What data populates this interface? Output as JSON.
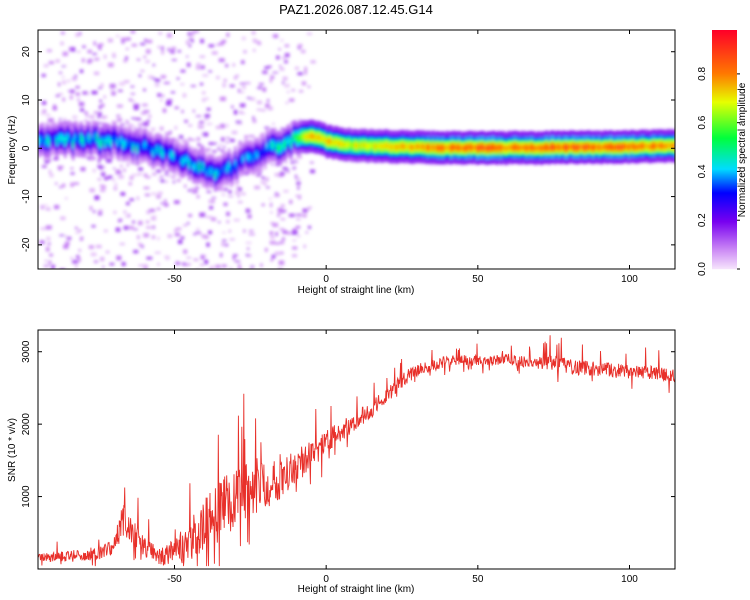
{
  "figure_title": "PAZ1.2026.087.12.45.G14",
  "colors": {
    "snr_line": "#e8302a",
    "axis": "#000000",
    "background": "#ffffff"
  },
  "chart_data": [
    {
      "type": "heatmap",
      "name": "spectrogram",
      "title": "PAZ1.2026.087.12.45.G14",
      "xlabel": "Height of straight line (km)",
      "ylabel": "Frequency (Hz)",
      "xlim": [
        -95,
        115
      ],
      "ylim": [
        -25,
        24.5
      ],
      "xticks": [
        -50,
        0,
        50,
        100
      ],
      "xtick_labels": [
        "-50",
        "0",
        "50",
        "100"
      ],
      "yticks": [
        -20,
        -10,
        0,
        10,
        20
      ],
      "ytick_labels": [
        "-20",
        "-10",
        "0",
        "10",
        "20"
      ],
      "colorbar": {
        "label": "Normalized spectral amplitude",
        "range": [
          0,
          0.98
        ],
        "ticks": [
          0.0,
          0.2,
          0.4,
          0.6,
          0.8
        ],
        "tick_labels": [
          "0.0",
          "0.2",
          "0.4",
          "0.6",
          "0.8"
        ],
        "colormap": "rainbow"
      },
      "ridge": {
        "description": "dominant frequency track vs height",
        "x": [
          -90,
          -80,
          -70,
          -60,
          -50,
          -45,
          -40,
          -35,
          -30,
          -25,
          -20,
          -15,
          -10,
          -7,
          -3,
          0,
          5,
          10,
          20,
          30,
          40,
          50,
          60,
          70,
          80,
          90,
          100,
          110,
          115
        ],
        "y": [
          1.5,
          1.8,
          1.5,
          0.0,
          -1.5,
          -3.0,
          -4.5,
          -5.0,
          -3.5,
          -1.5,
          -0.3,
          0.8,
          2.0,
          2.5,
          2.3,
          1.4,
          0.9,
          0.6,
          0.4,
          0.2,
          0.1,
          0.1,
          0.1,
          0.1,
          0.2,
          0.2,
          0.3,
          0.4,
          0.5
        ],
        "amplitude": [
          0.4,
          0.45,
          0.45,
          0.4,
          0.42,
          0.45,
          0.45,
          0.4,
          0.35,
          0.35,
          0.45,
          0.5,
          0.6,
          0.75,
          0.8,
          0.75,
          0.75,
          0.7,
          0.75,
          0.8,
          0.85,
          0.85,
          0.85,
          0.85,
          0.85,
          0.85,
          0.85,
          0.8,
          0.8
        ]
      }
    },
    {
      "type": "line",
      "name": "snr",
      "xlabel": "Height of straight line (km)",
      "ylabel": "SNR (10 * v/v)",
      "xlim": [
        -95,
        115
      ],
      "ylim": [
        0,
        3300
      ],
      "xticks": [
        -50,
        0,
        50,
        100
      ],
      "xtick_labels": [
        "-50",
        "0",
        "50",
        "100"
      ],
      "yticks": [
        1000,
        2000,
        3000
      ],
      "ytick_labels": [
        "1000",
        "2000",
        "3000"
      ],
      "series": [
        {
          "name": "SNR",
          "x": [
            -95,
            -85,
            -75,
            -70,
            -67,
            -60,
            -55,
            -50,
            -45,
            -40,
            -35,
            -30,
            -25,
            -20,
            -15,
            -10,
            -5,
            0,
            5,
            10,
            15,
            20,
            25,
            30,
            35,
            40,
            45,
            50,
            55,
            60,
            65,
            70,
            75,
            80,
            85,
            90,
            95,
            100,
            105,
            110,
            115
          ],
          "values": [
            150,
            170,
            220,
            300,
            700,
            300,
            180,
            220,
            400,
            600,
            800,
            1000,
            1100,
            1200,
            1300,
            1450,
            1550,
            1750,
            1900,
            2050,
            2200,
            2400,
            2600,
            2750,
            2800,
            2870,
            2900,
            2880,
            2880,
            2900,
            2870,
            2850,
            2850,
            2800,
            2780,
            2760,
            2740,
            2720,
            2710,
            2700,
            2650
          ],
          "noise": [
            60,
            80,
            90,
            110,
            250,
            130,
            130,
            180,
            300,
            380,
            420,
            420,
            400,
            380,
            330,
            260,
            210,
            170,
            150,
            130,
            120,
            110,
            100,
            90,
            85,
            80,
            75,
            75,
            75,
            80,
            80,
            90,
            110,
            110,
            105,
            100,
            100,
            100,
            100,
            100,
            100
          ],
          "color": "#e8302a"
        }
      ]
    }
  ]
}
